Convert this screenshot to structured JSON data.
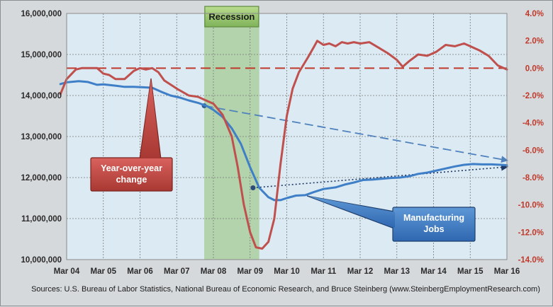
{
  "chart_data": {
    "type": "line",
    "title": "",
    "x_ticks": [
      "Mar 04",
      "Mar 05",
      "Mar 06",
      "Mar 07",
      "Mar 08",
      "Mar 09",
      "Mar 10",
      "Mar 11",
      "Mar 12",
      "Mar 13",
      "Mar 14",
      "Mar 15",
      "Mar 16"
    ],
    "x_range": [
      2004.17,
      2016.17
    ],
    "y_left": {
      "range": [
        10000000,
        16000000
      ],
      "ticks": [
        10000000,
        11000000,
        12000000,
        13000000,
        14000000,
        15000000,
        16000000
      ],
      "tick_labels": [
        "10,000,000",
        "11,000,000",
        "12,000,000",
        "13,000,000",
        "14,000,000",
        "15,000,000",
        "16,000,000"
      ]
    },
    "y_right": {
      "range": [
        -14,
        4
      ],
      "ticks": [
        -14,
        -12,
        -10,
        -8,
        -6,
        -4,
        -2,
        0,
        2,
        4
      ],
      "tick_labels": [
        "-14.0%",
        "-12.0%",
        "-10.0%",
        "-8.0%",
        "-6.0%",
        "-4.0%",
        "-2.0%",
        "0.0%",
        "2.0%",
        "4.0%"
      ]
    },
    "grid": true,
    "recession": {
      "label": "Recession",
      "start": 2007.92,
      "end": 2009.42,
      "color": "#8fc06f"
    },
    "series": [
      {
        "name": "Manufacturing Jobs",
        "axis": "left",
        "color": "#3f7fc7",
        "points": [
          [
            2004.0,
            14280000
          ],
          [
            2004.17,
            14320000
          ],
          [
            2004.5,
            14350000
          ],
          [
            2004.75,
            14330000
          ],
          [
            2005.0,
            14260000
          ],
          [
            2005.17,
            14270000
          ],
          [
            2005.5,
            14240000
          ],
          [
            2005.75,
            14210000
          ],
          [
            2006.0,
            14210000
          ],
          [
            2006.25,
            14200000
          ],
          [
            2006.5,
            14190000
          ],
          [
            2006.75,
            14090000
          ],
          [
            2007.0,
            14000000
          ],
          [
            2007.25,
            13950000
          ],
          [
            2007.5,
            13880000
          ],
          [
            2007.75,
            13820000
          ],
          [
            2008.0,
            13740000
          ],
          [
            2008.17,
            13650000
          ],
          [
            2008.42,
            13480000
          ],
          [
            2008.67,
            13200000
          ],
          [
            2008.92,
            12820000
          ],
          [
            2009.17,
            12250000
          ],
          [
            2009.42,
            11750000
          ],
          [
            2009.67,
            11520000
          ],
          [
            2009.83,
            11450000
          ],
          [
            2010.0,
            11450000
          ],
          [
            2010.17,
            11500000
          ],
          [
            2010.42,
            11560000
          ],
          [
            2010.67,
            11570000
          ],
          [
            2010.92,
            11650000
          ],
          [
            2011.17,
            11720000
          ],
          [
            2011.5,
            11760000
          ],
          [
            2011.75,
            11830000
          ],
          [
            2012.0,
            11880000
          ],
          [
            2012.25,
            11940000
          ],
          [
            2012.5,
            11950000
          ],
          [
            2012.75,
            11970000
          ],
          [
            2013.0,
            11990000
          ],
          [
            2013.25,
            12000000
          ],
          [
            2013.5,
            12030000
          ],
          [
            2013.75,
            12090000
          ],
          [
            2014.0,
            12120000
          ],
          [
            2014.25,
            12170000
          ],
          [
            2014.5,
            12220000
          ],
          [
            2014.75,
            12270000
          ],
          [
            2015.0,
            12310000
          ],
          [
            2015.25,
            12330000
          ],
          [
            2015.5,
            12320000
          ],
          [
            2015.75,
            12320000
          ],
          [
            2016.0,
            12310000
          ],
          [
            2016.17,
            12300000
          ]
        ]
      },
      {
        "name": "Year-over-year change",
        "axis": "right",
        "color": "#c0504d",
        "points": [
          [
            2004.0,
            -1.9
          ],
          [
            2004.17,
            -0.8
          ],
          [
            2004.42,
            -0.1
          ],
          [
            2004.58,
            0.0
          ],
          [
            2004.75,
            0.0
          ],
          [
            2005.0,
            0.0
          ],
          [
            2005.17,
            -0.4
          ],
          [
            2005.33,
            -0.5
          ],
          [
            2005.5,
            -0.8
          ],
          [
            2005.75,
            -0.8
          ],
          [
            2006.0,
            -0.2
          ],
          [
            2006.17,
            0.0
          ],
          [
            2006.33,
            -0.1
          ],
          [
            2006.5,
            0.0
          ],
          [
            2006.67,
            -0.3
          ],
          [
            2006.83,
            -0.9
          ],
          [
            2007.0,
            -1.2
          ],
          [
            2007.17,
            -1.5
          ],
          [
            2007.5,
            -2.0
          ],
          [
            2007.75,
            -2.1
          ],
          [
            2008.0,
            -2.4
          ],
          [
            2008.17,
            -2.6
          ],
          [
            2008.42,
            -3.4
          ],
          [
            2008.67,
            -5.0
          ],
          [
            2008.83,
            -7.2
          ],
          [
            2009.0,
            -10.0
          ],
          [
            2009.17,
            -12.0
          ],
          [
            2009.33,
            -13.1
          ],
          [
            2009.5,
            -13.2
          ],
          [
            2009.67,
            -12.7
          ],
          [
            2009.83,
            -11.0
          ],
          [
            2010.0,
            -7.0
          ],
          [
            2010.17,
            -3.5
          ],
          [
            2010.33,
            -1.5
          ],
          [
            2010.5,
            -0.3
          ],
          [
            2010.75,
            0.8
          ],
          [
            2010.92,
            1.6
          ],
          [
            2011.0,
            2.0
          ],
          [
            2011.17,
            1.7
          ],
          [
            2011.33,
            1.8
          ],
          [
            2011.5,
            1.6
          ],
          [
            2011.67,
            1.9
          ],
          [
            2011.83,
            1.8
          ],
          [
            2012.0,
            1.9
          ],
          [
            2012.17,
            1.8
          ],
          [
            2012.42,
            1.9
          ],
          [
            2012.67,
            1.5
          ],
          [
            2012.92,
            1.1
          ],
          [
            2013.17,
            0.6
          ],
          [
            2013.33,
            0.1
          ],
          [
            2013.5,
            0.5
          ],
          [
            2013.75,
            1.0
          ],
          [
            2014.0,
            0.9
          ],
          [
            2014.25,
            1.2
          ],
          [
            2014.5,
            1.7
          ],
          [
            2014.75,
            1.6
          ],
          [
            2015.0,
            1.8
          ],
          [
            2015.17,
            1.6
          ],
          [
            2015.42,
            1.3
          ],
          [
            2015.67,
            0.9
          ],
          [
            2015.92,
            0.2
          ],
          [
            2016.17,
            -0.1
          ]
        ]
      }
    ],
    "reference_line": {
      "axis": "right",
      "value": 0.0,
      "color": "#c0392b",
      "style": "dashed"
    },
    "trend_lines": [
      {
        "style": "dashed",
        "color": "#4f81bd",
        "from": [
          2007.92,
          13750000
        ],
        "to": [
          2016.17,
          12420000
        ]
      },
      {
        "style": "dotted",
        "color": "#1f3864",
        "from": [
          2009.25,
          11750000
        ],
        "to": [
          2016.17,
          12260000
        ]
      }
    ],
    "annotations": [
      {
        "text_lines": [
          "Year-over-year",
          "change"
        ],
        "color": "#c0504d",
        "placement": "center-left"
      },
      {
        "text_lines": [
          "Manufacturing",
          "Jobs"
        ],
        "color": "#4f81bd",
        "placement": "lower-right"
      }
    ],
    "source": "Sources: U.S. Bureau of Labor Statistics, National Bureau of Economic Research, and Bruce Steinberg (www.SteinbergEmploymentResearch.com)"
  }
}
